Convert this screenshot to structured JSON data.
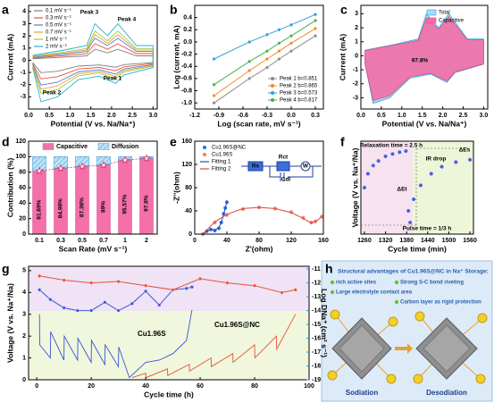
{
  "chart_data": [
    {
      "type": "line",
      "panel": "a",
      "xlabel": "Potential (V vs. Na/Na⁺)",
      "ylabel": "Current (mA)",
      "x": [
        0.1,
        0.8,
        1.4,
        1.6,
        1.9,
        2.15,
        2.6,
        3.0,
        3.0,
        2.3,
        2.1,
        1.7,
        1.2,
        0.7,
        0.3,
        0.1
      ],
      "xlim": [
        0,
        3.1
      ],
      "ylim": [
        -4,
        4.5
      ],
      "xticks": [
        {
          "value": 0,
          "label": "0.0"
        },
        0.5,
        {
          "value": 1,
          "label": "1.0"
        },
        1.5,
        {
          "value": 2,
          "label": "2.0"
        },
        2.5,
        {
          "value": 3,
          "label": "3.0"
        }
      ],
      "yticks": [
        -3,
        -2,
        -1,
        0,
        1,
        2,
        3,
        4
      ],
      "series": [
        {
          "name": "0.1 mV s⁻¹",
          "color": "#7f7f7f",
          "values": [
            0.12,
            0.24,
            0.36,
            0.9,
            0.6,
            0.9,
            0.36,
            0.36,
            -0.18,
            -0.36,
            -0.57,
            -0.39,
            -0.48,
            -0.9,
            -1.02,
            -0.18
          ]
        },
        {
          "name": "0.3 mV s⁻¹",
          "color": "#e8503a",
          "values": [
            0.18,
            0.36,
            0.54,
            1.35,
            0.9,
            1.35,
            0.54,
            0.54,
            -0.27,
            -0.54,
            -0.86,
            -0.59,
            -0.72,
            -1.35,
            -1.53,
            -0.27
          ]
        },
        {
          "name": "0.5 mV s⁻¹",
          "color": "#4a7fd4",
          "values": [
            0.24,
            0.48,
            0.72,
            1.8,
            1.2,
            1.8,
            0.72,
            0.72,
            -0.36,
            -0.72,
            -1.14,
            -0.78,
            -0.96,
            -1.8,
            -2.04,
            -0.36
          ]
        },
        {
          "name": "0.7 mV s⁻¹",
          "color": "#f0a030",
          "values": [
            0.28,
            0.56,
            0.84,
            2.1,
            1.4,
            2.1,
            0.84,
            0.84,
            -0.42,
            -0.84,
            -1.33,
            -0.91,
            -1.12,
            -2.1,
            -2.38,
            -0.42
          ]
        },
        {
          "name": "1 mV s⁻¹",
          "color": "#9ccc3a",
          "values": [
            0.32,
            0.64,
            0.96,
            2.4,
            1.6,
            2.4,
            0.96,
            0.96,
            -0.48,
            -0.96,
            -1.52,
            -1.04,
            -1.28,
            -2.4,
            -2.72,
            -0.48
          ]
        },
        {
          "name": "2 mV s⁻¹",
          "color": "#25b2d6",
          "values": [
            0.4,
            0.8,
            1.2,
            3.0,
            2.0,
            3.0,
            1.2,
            1.2,
            -0.6,
            -1.2,
            -1.9,
            -1.3,
            -1.6,
            -3.0,
            -3.4,
            -0.6
          ]
        }
      ],
      "annotations": [
        "Peak 3",
        "Peak 4",
        "Peak 2",
        "Peak 1"
      ]
    },
    {
      "type": "scatter",
      "panel": "b",
      "xlabel": "Log (scan rate, mV s⁻¹)",
      "ylabel": "Log (current, mA)",
      "x": [
        -0.96,
        -0.52,
        -0.3,
        -0.15,
        0.0,
        0.3
      ],
      "xlim": [
        -1.2,
        0.4
      ],
      "ylim": [
        -1.1,
        0.6
      ],
      "xticks": [
        -1.2,
        -0.9,
        -0.6,
        -0.3,
        {
          "value": 0,
          "label": "0.0"
        },
        0.3
      ],
      "yticks": [
        {
          "value": -1,
          "label": "-1.0"
        },
        -0.8,
        -0.6,
        -0.4,
        -0.2,
        {
          "value": 0,
          "label": "0.0"
        },
        0.2,
        0.4
      ],
      "series": [
        {
          "name": "Peak 1 b=0.851",
          "color": "#8c8c8c",
          "mode": "lines+markers",
          "values": [
            -1.0,
            -0.6,
            -0.42,
            -0.28,
            -0.15,
            0.1
          ]
        },
        {
          "name": "Peak 2 b=0.865",
          "color": "#f08a2a",
          "mode": "lines+markers",
          "values": [
            -0.88,
            -0.47,
            -0.28,
            -0.15,
            -0.02,
            0.22
          ]
        },
        {
          "name": "Peak 3 b=0.573",
          "color": "#2f9fd8",
          "mode": "lines+markers",
          "values": [
            -0.28,
            0.0,
            0.12,
            0.2,
            0.28,
            0.45
          ]
        },
        {
          "name": "Peak 4 b=0.817",
          "color": "#4caf50",
          "mode": "lines+markers",
          "values": [
            -0.7,
            -0.32,
            -0.15,
            -0.02,
            0.1,
            0.35
          ]
        }
      ]
    },
    {
      "type": "area",
      "panel": "c",
      "xlabel": "Potential (V vs. Na/Na⁺)",
      "ylabel": "Current (mA)",
      "x": [
        0.1,
        0.8,
        1.4,
        1.6,
        1.9,
        2.15,
        2.6,
        3.0,
        3.0,
        2.3,
        2.1,
        1.7,
        1.2,
        0.7,
        0.3,
        0.1
      ],
      "xlim": [
        0,
        3.1
      ],
      "ylim": [
        -3.8,
        3.6
      ],
      "xticks": [
        {
          "value": 0,
          "label": "0.0"
        },
        0.5,
        {
          "value": 1,
          "label": "1.0"
        },
        1.5,
        {
          "value": 2,
          "label": "2.0"
        },
        2.5,
        {
          "value": 3,
          "label": "3.0"
        }
      ],
      "yticks": [
        -3,
        -2,
        -1,
        0,
        1,
        2,
        3
      ],
      "series": [
        {
          "name": "Total",
          "color": "#a9dcf2",
          "values": [
            0.4,
            0.8,
            1.2,
            3.0,
            2.0,
            3.0,
            1.2,
            1.2,
            -0.6,
            -1.2,
            -1.9,
            -1.3,
            -1.6,
            -3.0,
            -3.4,
            -0.6
          ]
        },
        {
          "name": "Capacitive",
          "color": "#f26ea6",
          "values": [
            0.38,
            0.76,
            1.1,
            2.7,
            1.9,
            2.8,
            1.15,
            1.15,
            -0.57,
            -1.15,
            -1.8,
            -1.25,
            -1.5,
            -2.85,
            -3.2,
            -0.57
          ]
        }
      ],
      "annotations": [
        "97.8%"
      ]
    },
    {
      "type": "bar",
      "panel": "d",
      "stacked": true,
      "xlabel": "Scan Rate (mV s⁻¹)",
      "ylabel": "Contribution (%)",
      "categories": [
        "0.1",
        "0.3",
        "0.5",
        "0.7",
        "1",
        "2"
      ],
      "ylim": [
        0,
        120
      ],
      "yticks": [
        0,
        20,
        40,
        60,
        80,
        100,
        120
      ],
      "series": [
        {
          "name": "Capacitive",
          "color": "#f470a8",
          "values": [
            81.69,
            84.98,
            87.36,
            89,
            95.57,
            97.8
          ],
          "value_labels": [
            "81.69%",
            "84.98%",
            "87.36%",
            "89%",
            "95.57%",
            "97.8%"
          ]
        },
        {
          "name": "Diffusion",
          "color": "#8fcdee",
          "values": [
            18.31,
            15.02,
            12.64,
            11,
            4.43,
            2.2
          ]
        }
      ]
    },
    {
      "type": "scatter",
      "panel": "e",
      "xlabel": "Z'(ohm)",
      "ylabel": "-Z''(ohm)",
      "xlim": [
        0,
        160
      ],
      "ylim": [
        0,
        160
      ],
      "xticks": [
        0,
        40,
        80,
        120,
        160
      ],
      "yticks": [
        0,
        40,
        80,
        120,
        160
      ],
      "series": [
        {
          "name": "Cu1.96S@NC",
          "color": "#2f6fe0",
          "mode": "markers",
          "x": [
            10,
            15,
            20,
            25,
            30,
            33,
            36,
            38,
            40
          ],
          "values": [
            0,
            5,
            8,
            6,
            10,
            20,
            35,
            45,
            55
          ]
        },
        {
          "name": "Cu1.96S",
          "color": "#f07a6a",
          "mode": "markers",
          "x": [
            10,
            25,
            40,
            60,
            80,
            100,
            120,
            135,
            145,
            150,
            158
          ],
          "values": [
            0,
            20,
            33,
            43,
            46,
            44,
            38,
            28,
            20,
            22,
            30
          ]
        },
        {
          "name": "Fitting 1",
          "color": "#1c4fc0",
          "mode": "lines",
          "x": [
            10,
            15,
            20,
            25,
            30,
            33,
            36,
            38,
            40
          ],
          "values": [
            0,
            5,
            8,
            7,
            11,
            20,
            34,
            45,
            56
          ]
        },
        {
          "name": "Fitting 2",
          "color": "#e0463a",
          "mode": "lines",
          "x": [
            10,
            25,
            40,
            60,
            80,
            100,
            120,
            135,
            145,
            150,
            158
          ],
          "values": [
            0,
            21,
            34,
            44,
            46,
            44,
            37,
            27,
            19,
            21,
            30
          ]
        }
      ],
      "annotations": [
        "Rs",
        "Rct",
        "W",
        "Cdl"
      ]
    },
    {
      "type": "scatter",
      "panel": "f",
      "xlabel": "Cycle time (min)",
      "ylabel": "Voltage (V vs. Na⁺/Na)",
      "x": [
        1260,
        1270,
        1285,
        1300,
        1320,
        1340,
        1360,
        1378,
        1385,
        1390,
        1400,
        1420,
        1450,
        1480,
        1520,
        1560
      ],
      "xlim": [
        1250,
        1570
      ],
      "ylim": [
        0.2,
        1.0
      ],
      "xticks": [
        1260,
        1320,
        1380,
        1440,
        1500,
        1560
      ],
      "series": [
        {
          "color": "#4a5ee0",
          "mode": "markers",
          "values": [
            0.6,
            0.72,
            0.79,
            0.83,
            0.87,
            0.89,
            0.905,
            0.915,
            0.4,
            0.3,
            0.5,
            0.62,
            0.72,
            0.78,
            0.82,
            0.84
          ]
        }
      ],
      "annotations": [
        "Relaxation time = 2.5 h",
        "IR drop",
        "ΔEs",
        "ΔEt",
        "Pulse time = 1/3 h"
      ]
    },
    {
      "type": "line",
      "panel": "g",
      "xlabel": "Cycle time (h)",
      "ylabel": "Voltage (V vs. Na⁺/Na)",
      "y2label": "Log DNa⁺ (cm² s⁻¹)",
      "xlim": [
        -3,
        100
      ],
      "ylim": [
        0,
        5.2
      ],
      "y2lim": [
        -19,
        -10.8
      ],
      "xticks": [
        0,
        20,
        40,
        60,
        80,
        100
      ],
      "yticks": [
        0,
        1,
        2,
        3,
        4,
        5
      ],
      "y2ticks": [
        -19,
        -18,
        -17,
        -16,
        -15,
        -14,
        -13,
        -12,
        -11
      ],
      "series": [
        {
          "name": "Cu1.96S",
          "color": "#3a55d8",
          "x": [
            1,
            1.1,
            5,
            5.1,
            10,
            10.1,
            15,
            15.1,
            20,
            20.1,
            25,
            25.1,
            30,
            30.1,
            34,
            40,
            45,
            50,
            55,
            57
          ],
          "values": [
            3.0,
            1.6,
            1.0,
            2.2,
            0.9,
            2.0,
            0.9,
            1.9,
            0.8,
            1.8,
            0.7,
            1.6,
            0.6,
            1.5,
            0.1,
            0.8,
            0.9,
            1.2,
            1.8,
            3.2
          ]
        },
        {
          "name": "Cu1.96S@NC",
          "color": "#e8503a",
          "x": [
            35,
            40,
            40.1,
            48,
            48.1,
            56,
            56.1,
            64,
            64.1,
            72,
            72.1,
            80,
            80.1,
            88,
            88.1,
            95
          ],
          "values": [
            0.1,
            0.3,
            0.1,
            0.5,
            0.2,
            0.7,
            0.4,
            1.0,
            0.6,
            1.2,
            0.8,
            1.6,
            1.0,
            2.0,
            1.4,
            3.0
          ]
        },
        {
          "color": "#3a55d8",
          "axis": "y2",
          "mode": "lines+markers",
          "x": [
            1,
            5,
            10,
            15,
            20,
            25,
            30,
            35,
            40,
            45,
            50,
            55,
            57
          ],
          "values": [
            -12.5,
            -13.2,
            -13.8,
            -14.0,
            -14.0,
            -13.4,
            -14.0,
            -13.5,
            -12.6,
            -13.6,
            -12.5,
            -12.4,
            -12.3
          ]
        },
        {
          "color": "#e8503a",
          "axis": "y2",
          "mode": "lines+markers",
          "x": [
            1,
            10,
            20,
            30,
            40,
            50,
            60,
            70,
            80,
            90,
            95
          ],
          "values": [
            -11.5,
            -11.8,
            -12.0,
            -11.9,
            -12.2,
            -12.5,
            -11.7,
            -12.0,
            -12.2,
            -12.7,
            -12.5
          ]
        }
      ]
    }
  ],
  "illustration": {
    "panel": "h",
    "title": "Structural advantages of Cu1.96S@NC in Na⁺ Storage:",
    "points": [
      "rich active sites",
      "Strong S-C bond riveting",
      "Large electrolyte contact area",
      "Carbon layer as rigid protection"
    ],
    "labels": [
      "Sodiation",
      "Desodiation"
    ]
  }
}
